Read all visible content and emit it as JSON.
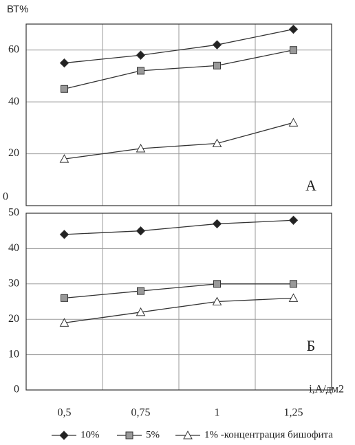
{
  "chart_data": [
    {
      "type": "line",
      "y_label": "ВТ%",
      "annotation": "А",
      "ylim": [
        0,
        70
      ],
      "yticks": [
        0,
        20,
        40,
        60
      ],
      "grid": true,
      "series": [
        {
          "color": "#333",
          "marker": "diamond",
          "values": [
            55,
            58,
            62,
            68
          ]
        },
        {
          "color": "#333",
          "marker": "square",
          "values": [
            45,
            52,
            54,
            60
          ]
        },
        {
          "color": "#333",
          "marker": "triangle",
          "values": [
            18,
            22,
            24,
            32
          ]
        }
      ]
    },
    {
      "type": "line",
      "x_label": "i,А/дм2",
      "annotation": "Б",
      "categories": [
        "0,5",
        "0,75",
        "1",
        "1,25"
      ],
      "ylim": [
        0,
        50
      ],
      "yticks": [
        0,
        10,
        20,
        30,
        40,
        50
      ],
      "grid": true,
      "series": [
        {
          "name": "10%",
          "color": "#333",
          "marker": "diamond",
          "values": [
            44,
            45,
            47,
            48
          ]
        },
        {
          "name": "5%",
          "color": "#333",
          "marker": "square",
          "values": [
            26,
            28,
            30,
            30
          ]
        },
        {
          "name": "1% -концентрация бишофита",
          "color": "#333",
          "marker": "triangle",
          "values": [
            19,
            22,
            25,
            26
          ]
        }
      ]
    }
  ]
}
